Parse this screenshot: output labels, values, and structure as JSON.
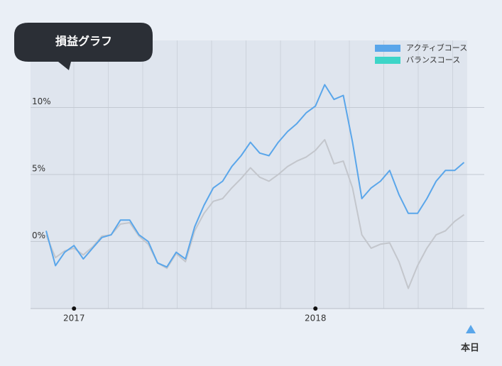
{
  "chart_data": {
    "type": "line",
    "title": "損益グラフ",
    "today_label": "本日",
    "categories": [
      null,
      null,
      null,
      "2017",
      null,
      null,
      null,
      null,
      null,
      null,
      null,
      null,
      null,
      null,
      null,
      null,
      null,
      null,
      null,
      null,
      null,
      null,
      null,
      null,
      null,
      null,
      null,
      null,
      null,
      "2018",
      null,
      null,
      null,
      null,
      null,
      null,
      null,
      null,
      null,
      null,
      null,
      null,
      null,
      null,
      null,
      null
    ],
    "series": [
      {
        "name": "アクティブコース",
        "color": "#5aa6ea",
        "line_color": "#5aa6ea",
        "values": [
          0.8,
          -1.8,
          -0.8,
          -0.3,
          -1.3,
          -0.5,
          0.3,
          0.5,
          1.6,
          1.6,
          0.5,
          0,
          -1.6,
          -1.9,
          -0.8,
          -1.3,
          1.1,
          2.7,
          4.0,
          4.5,
          5.6,
          6.4,
          7.4,
          6.6,
          6.4,
          7.4,
          8.2,
          8.8,
          9.6,
          10.1,
          11.7,
          10.6,
          10.9,
          7.4,
          3.2,
          4.0,
          4.5,
          5.3,
          3.5,
          2.1,
          2.1,
          3.2,
          4.5,
          5.3,
          5.3,
          5.9
        ]
      },
      {
        "name": "バランスコース",
        "color": "#3dd5c8",
        "line_color": "#c3c6cc",
        "values": [
          0.5,
          -1.2,
          -0.7,
          -0.5,
          -1.0,
          -0.4,
          0.4,
          0.5,
          1.3,
          1.4,
          0.4,
          -0.2,
          -1.6,
          -2.0,
          -0.9,
          -1.5,
          0.8,
          2.1,
          3.0,
          3.2,
          4.0,
          4.7,
          5.5,
          4.8,
          4.5,
          5.0,
          5.6,
          6.0,
          6.3,
          6.8,
          7.6,
          5.8,
          6.0,
          4.0,
          0.5,
          -0.5,
          -0.2,
          -0.1,
          -1.5,
          -3.5,
          -1.8,
          -0.5,
          0.5,
          0.8,
          1.5,
          2.0
        ]
      }
    ],
    "ylim": [
      -5,
      15
    ],
    "yticks": [
      {
        "value": 0,
        "label": "0%"
      },
      {
        "value": 5,
        "label": "5%"
      },
      {
        "value": 10,
        "label": "10%"
      }
    ],
    "grid": true,
    "legend": "top-right"
  }
}
